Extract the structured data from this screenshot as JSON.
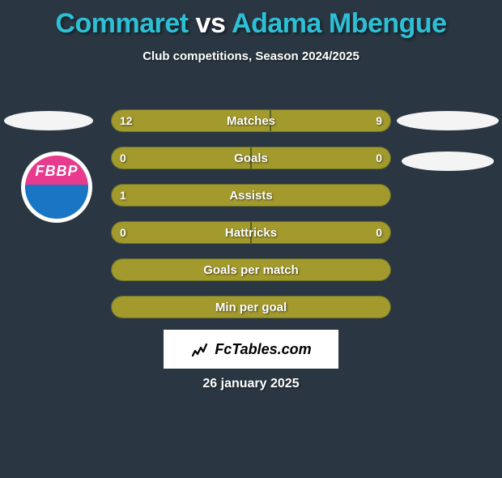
{
  "title": {
    "player1": "Commaret",
    "vs": "vs",
    "player2": "Adama Mbengue"
  },
  "subtitle": "Club competitions, Season 2024/2025",
  "ellipses": {
    "background_color": "#f4f4f4"
  },
  "badge": {
    "text": "FBBP",
    "top_color": "#e83b8e",
    "bottom_color": "#1976c5"
  },
  "bars": {
    "fill_color": "#a39a2e",
    "border_color": "#68702a",
    "rows": [
      {
        "label": "Matches",
        "left": "12",
        "right": "9",
        "left_pct": 57.1,
        "right_pct": 42.9
      },
      {
        "label": "Goals",
        "left": "0",
        "right": "0",
        "left_pct": 50,
        "right_pct": 50
      },
      {
        "label": "Assists",
        "left": "1",
        "right": "",
        "left_pct": 100,
        "right_pct": 0
      },
      {
        "label": "Hattricks",
        "left": "0",
        "right": "0",
        "left_pct": 50,
        "right_pct": 50
      },
      {
        "label": "Goals per match",
        "left": "",
        "right": "",
        "left_pct": 100,
        "right_pct": 0
      },
      {
        "label": "Min per goal",
        "left": "",
        "right": "",
        "left_pct": 100,
        "right_pct": 0
      }
    ]
  },
  "brand": "FcTables.com",
  "date": "26 january 2025",
  "colors": {
    "background": "#2a3642",
    "accent": "#2cc0d6",
    "text": "#ffffff"
  }
}
